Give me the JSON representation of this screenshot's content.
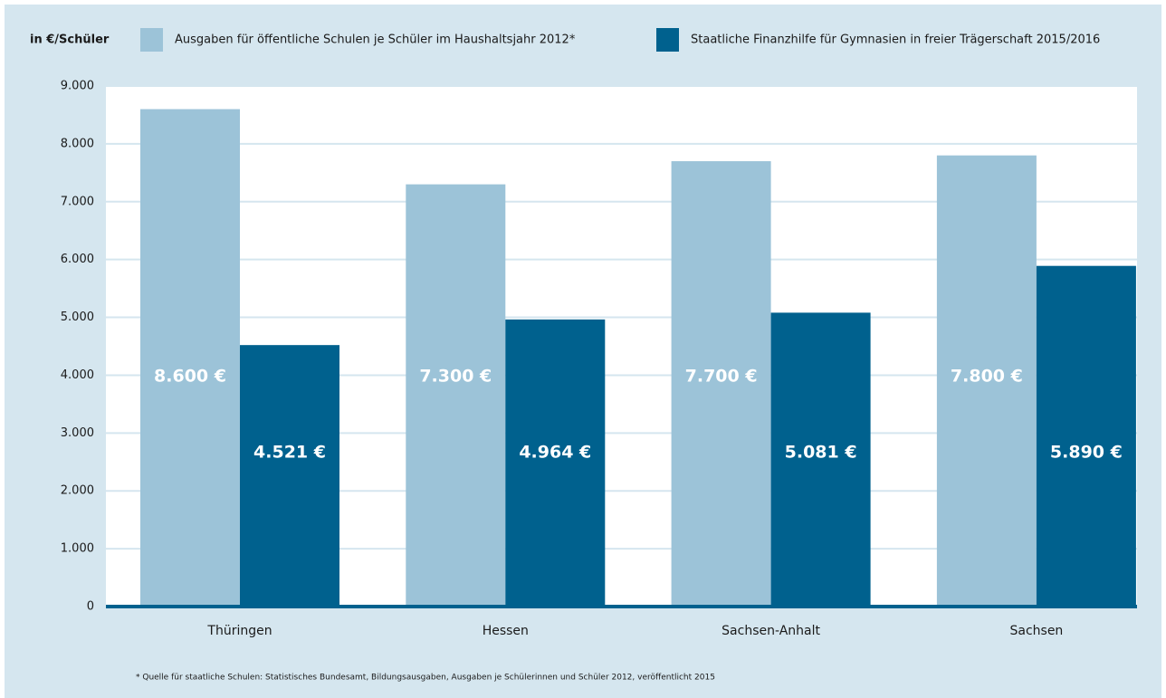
{
  "chart_data": {
    "type": "bar",
    "y_label": "in €/Schüler",
    "categories": [
      "Thüringen",
      "Hessen",
      "Sachsen-Anhalt",
      "Sachsen"
    ],
    "series": [
      {
        "name": "Ausgaben für öffentliche Schulen je Schüler im Haushaltsjahr 2012*",
        "color": "#9cc3d8",
        "values": [
          8600,
          7300,
          7700,
          7800
        ],
        "value_labels": [
          "8.600 €",
          "7.300 €",
          "7.700 €",
          "7.800 €"
        ]
      },
      {
        "name": "Staatliche Finanzhilfe für Gymnasien in freier Trägerschaft 2015/2016",
        "color": "#00618e",
        "values": [
          4521,
          4964,
          5081,
          5890
        ],
        "value_labels": [
          "4.521 €",
          "4.964 €",
          "5.081 €",
          "5.890 €"
        ]
      }
    ],
    "ylim": [
      0,
      9000
    ],
    "yticks": [
      0,
      {
        "value": 1000,
        "label": "1.000"
      },
      {
        "value": 2000,
        "label": "2.000"
      },
      {
        "value": 3000,
        "label": "3.000"
      },
      {
        "value": 4000,
        "label": "4.000"
      },
      {
        "value": 5000,
        "label": "5.000"
      },
      {
        "value": 6000,
        "label": "6.000"
      },
      {
        "value": 7000,
        "label": "7.000"
      },
      {
        "value": 8000,
        "label": "8.000"
      },
      {
        "value": 9000,
        "label": "9.000"
      }
    ],
    "grid": true,
    "note": "* Quelle für staatliche Schulen: Statistisches Bundesamt, Bildungsausgaben, Ausgaben je Schülerinnen und Schüler 2012, veröffentlicht 2015"
  }
}
